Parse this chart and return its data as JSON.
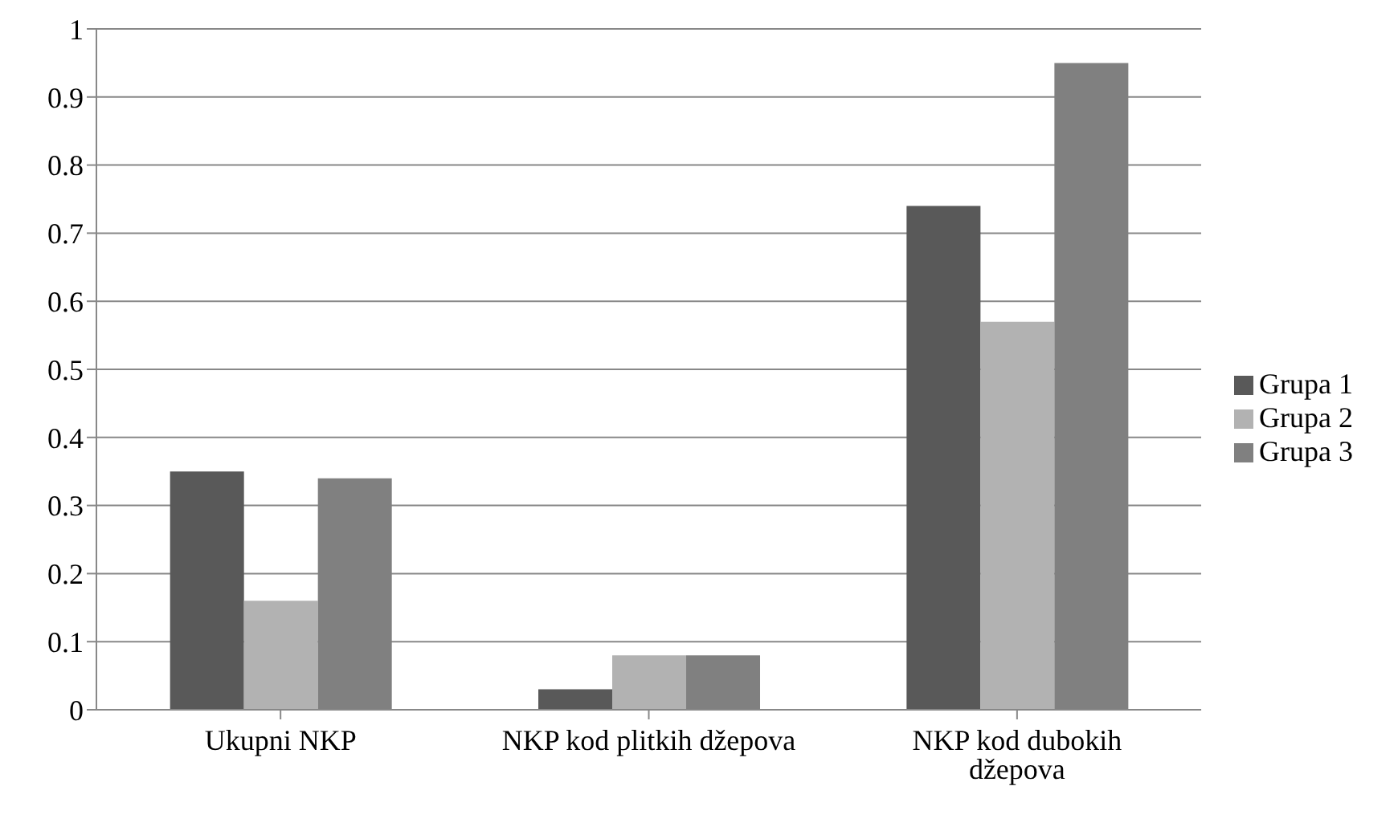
{
  "chart_data": {
    "type": "bar",
    "categories": [
      "Ukupni NKP",
      "NKP kod plitkih džepova",
      "NKP kod dubokih džepova"
    ],
    "series": [
      {
        "name": "Grupa 1",
        "color": "#595959",
        "values": [
          0.35,
          0.03,
          0.74
        ]
      },
      {
        "name": "Grupa 2",
        "color": "#b2b2b2",
        "values": [
          0.16,
          0.08,
          0.57
        ]
      },
      {
        "name": "Grupa 3",
        "color": "#808080",
        "values": [
          0.34,
          0.08,
          0.95
        ]
      }
    ],
    "ylim": [
      0,
      1
    ],
    "yticks": [
      0,
      0.1,
      0.2,
      0.3,
      0.4,
      0.5,
      0.6,
      0.7,
      0.8,
      0.9,
      1
    ],
    "grid": "y",
    "legend": "right"
  }
}
